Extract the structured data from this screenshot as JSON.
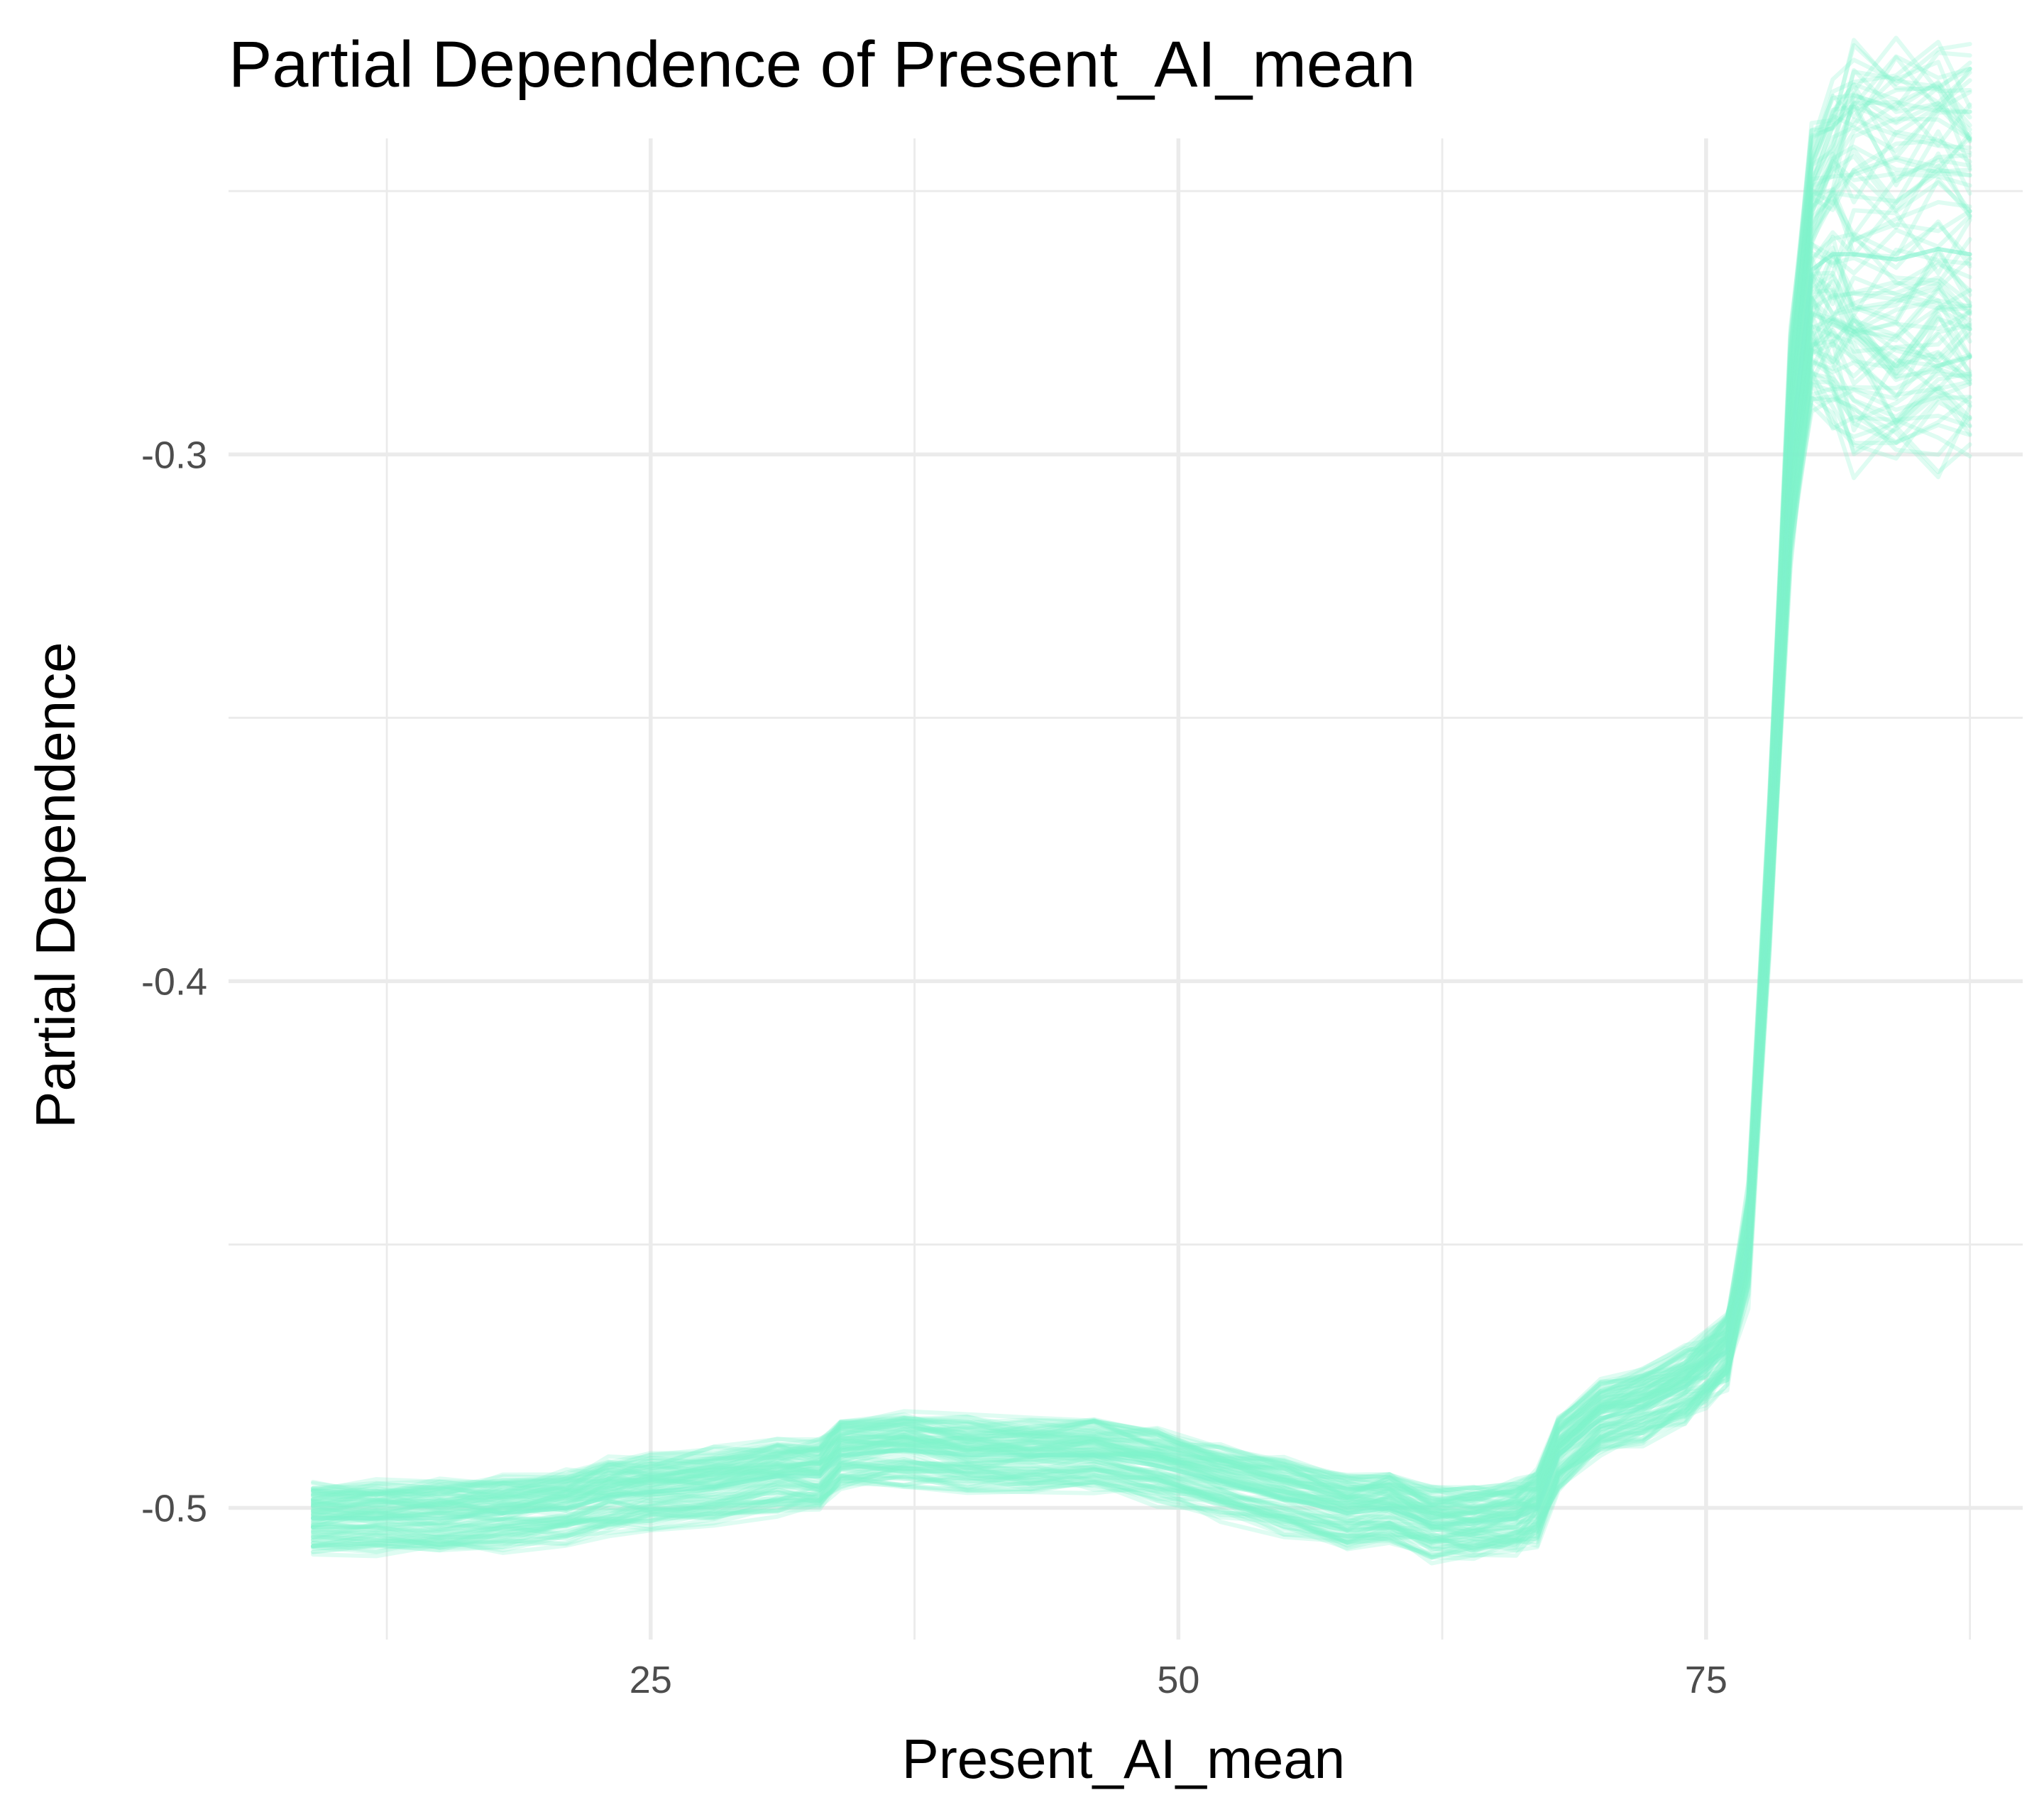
{
  "chart_data": {
    "type": "line",
    "title": "Partial Dependence of Present_AI_mean",
    "xlabel": "Present_AI_mean",
    "ylabel": "Partial Dependence",
    "xlim": [
      5,
      90
    ],
    "ylim": [
      -0.525,
      -0.24
    ],
    "x_ticks": [
      25,
      50,
      75
    ],
    "x_tick_labels": [
      "25",
      "50",
      "75"
    ],
    "x_minor_ticks": [
      12.5,
      37.5,
      62.5,
      87.5
    ],
    "y_ticks": [
      -0.5,
      -0.4,
      -0.3
    ],
    "y_tick_labels": [
      "-0.5",
      "-0.4",
      "-0.3"
    ],
    "y_minor_ticks": [
      -0.45,
      -0.35,
      -0.25
    ],
    "grid": true,
    "legend": "none",
    "line_color": "#7ff2cd",
    "line_opacity": 0.25,
    "n_curves": 100,
    "x": [
      9,
      12,
      15,
      18,
      21,
      23,
      25,
      28,
      31,
      33,
      34,
      37,
      40,
      43,
      46,
      49,
      52,
      55,
      58,
      60,
      62,
      64,
      66,
      67,
      68,
      70,
      72,
      74,
      75,
      76,
      77,
      78,
      79,
      80,
      81,
      82,
      84,
      86,
      87.5
    ],
    "series": [
      {
        "values": [
          -0.502,
          -0.502,
          -0.502,
          -0.501,
          -0.5,
          -0.498,
          -0.497,
          -0.496,
          -0.494,
          -0.494,
          -0.49,
          -0.489,
          -0.49,
          -0.49,
          -0.49,
          -0.492,
          -0.495,
          -0.498,
          -0.501,
          -0.5,
          -0.503,
          -0.503,
          -0.502,
          -0.5,
          -0.49,
          -0.483,
          -0.481,
          -0.477,
          -0.474,
          -0.47,
          -0.45,
          -0.38,
          -0.3,
          -0.265,
          -0.262,
          -0.262,
          -0.263,
          -0.261,
          -0.262
        ]
      }
    ]
  }
}
